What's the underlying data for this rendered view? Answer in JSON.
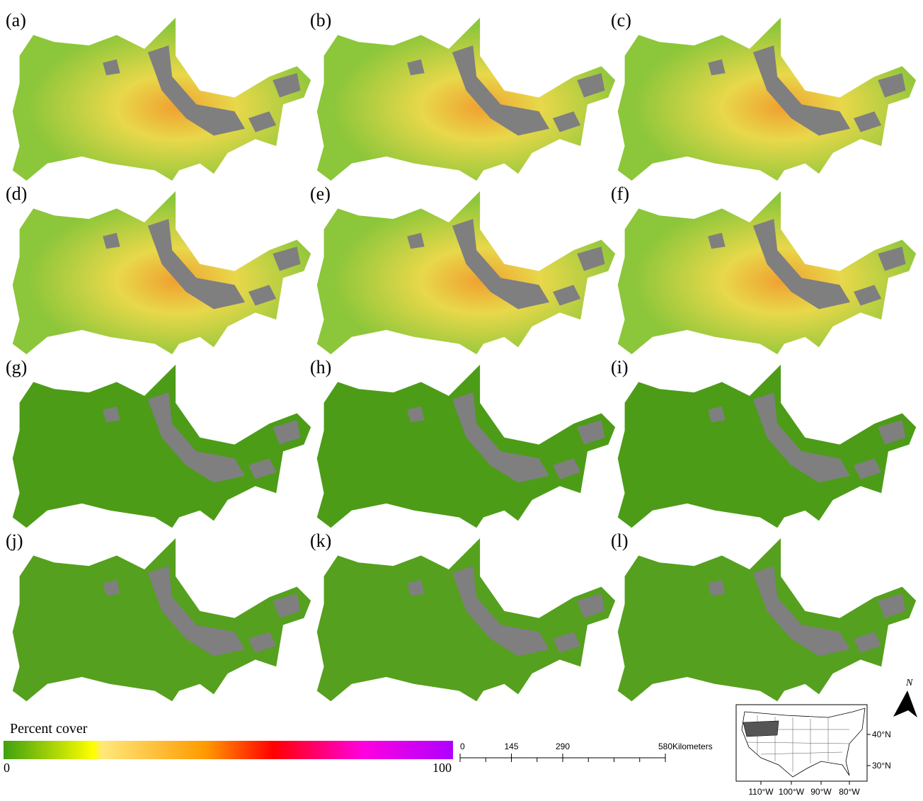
{
  "panels": [
    "(a)",
    "(b)",
    "(c)",
    "(d)",
    "(e)",
    "(f)",
    "(g)",
    "(h)",
    "(i)",
    "(j)",
    "(k)",
    "(l)"
  ],
  "legend": {
    "title": "Percent cover",
    "min": 0,
    "max": 100
  },
  "scale_bar": {
    "ticks": [
      0,
      145,
      290,
      580
    ],
    "unit": "Kilometers"
  },
  "inset": {
    "lat_labels": [
      "40°N",
      "30°N"
    ],
    "lon_labels": [
      "110°W",
      "100°W",
      "90°W",
      "80°W"
    ]
  },
  "north": "N"
}
